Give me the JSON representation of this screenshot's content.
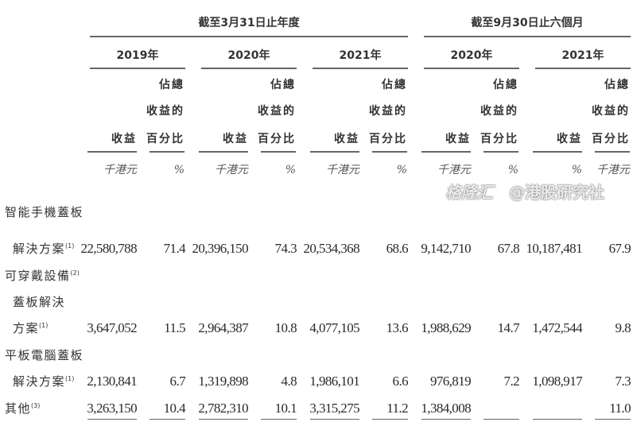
{
  "header": {
    "group_fy": "截至3月31日止年度",
    "group_six": "截至9月30日止六個月",
    "years": [
      "2019年",
      "2020年",
      "2021年",
      "2020年",
      "2021年"
    ],
    "col_heads": [
      {
        "rev": "收益",
        "pct": [
          "佔總",
          "收益的",
          "百分比"
        ],
        "units": [
          "千港元",
          "%"
        ]
      },
      {
        "rev": "收益",
        "pct": [
          "佔總",
          "收益的",
          "百分比"
        ],
        "units": [
          "千港元",
          "%"
        ]
      },
      {
        "rev": "收益",
        "pct": [
          "佔總",
          "收益的",
          "百分比"
        ],
        "units": [
          "千港元",
          "%"
        ]
      },
      {
        "rev": "收益",
        "pct": [
          "佔總",
          "收益的",
          "百分比"
        ],
        "units": [
          "千港元",
          "%"
        ]
      },
      {
        "rev": "收益",
        "pct": [
          "佔總",
          "收益的",
          "百分比"
        ],
        "units": [
          "%",
          "千港元"
        ]
      }
    ]
  },
  "rows": [
    {
      "label": [
        "智能手機蓋板",
        "解決方案"
      ],
      "note": "(1)",
      "values": [
        "22,580,788",
        "71.4",
        "20,396,150",
        "74.3",
        "20,534,368",
        "68.6",
        "9,142,710",
        "67.8",
        "10,187,481",
        "67.9"
      ]
    },
    {
      "label": [
        "可穿戴設備",
        "蓋板解決",
        "方案"
      ],
      "note_first": "(2)",
      "note": "(1)",
      "values": [
        "3,647,052",
        "11.5",
        "2,964,387",
        "10.8",
        "4,077,105",
        "13.6",
        "1,988,629",
        "14.7",
        "1,472,544",
        "9.8"
      ]
    },
    {
      "label": [
        "平板電腦蓋板",
        "解決方案"
      ],
      "note": "(1)",
      "values": [
        "2,130,841",
        "6.7",
        "1,319,898",
        "4.8",
        "1,986,101",
        "6.6",
        "976,819",
        "7.2",
        "1,098,917",
        "7.3"
      ]
    },
    {
      "label": [
        "其他"
      ],
      "note": "(3)",
      "values": [
        "3,263,150",
        "10.4",
        "2,782,310",
        "10.1",
        "3,315,275",
        "11.2",
        "1,384,008",
        "",
        "",
        "11.0"
      ]
    }
  ],
  "watermark": [
    "格隆汇",
    "@港股研究社"
  ]
}
